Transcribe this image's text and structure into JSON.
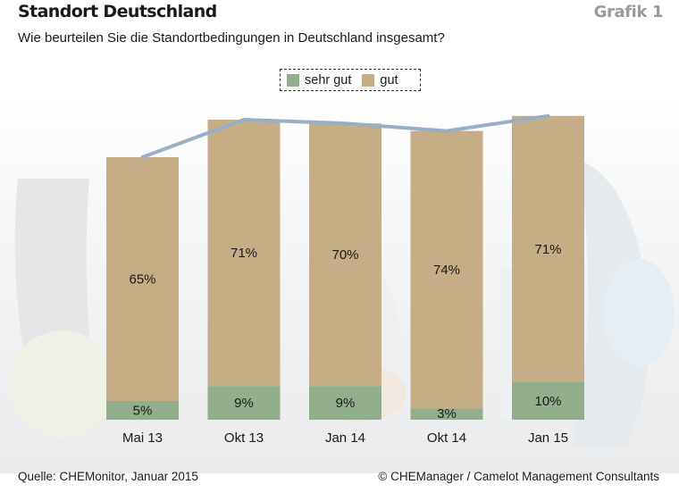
{
  "header": {
    "title": "Standort Deutschland",
    "figure_label": "Grafik 1",
    "subtitle": "Wie beurteilen Sie die Standortbedingungen in Deutschland insgesamt?"
  },
  "footer": {
    "source": "Quelle: CHEMonitor, Januar 2015",
    "copyright": "© CHEManager / Camelot Management Consultants"
  },
  "colors": {
    "sehr_gut": "#93ae8c",
    "gut": "#c5ad85",
    "line": "#98aec6"
  },
  "chart_data": {
    "type": "bar",
    "stacked": true,
    "categories": [
      "Mai 13",
      "Okt 13",
      "Jan 14",
      "Okt 14",
      "Jan 15"
    ],
    "series": [
      {
        "name": "sehr gut",
        "values": [
          5,
          9,
          9,
          3,
          10
        ],
        "labels": [
          "5%",
          "9%",
          "9%",
          "3%",
          "10%"
        ]
      },
      {
        "name": "gut",
        "values": [
          65,
          71,
          70,
          74,
          71
        ],
        "labels": [
          "65%",
          "71%",
          "70%",
          "74%",
          "71%"
        ]
      }
    ],
    "line_overlay": {
      "values": [
        70,
        80,
        79,
        77,
        81
      ]
    },
    "ylim": [
      0,
      82
    ],
    "legend": "top-center",
    "grid": false
  }
}
